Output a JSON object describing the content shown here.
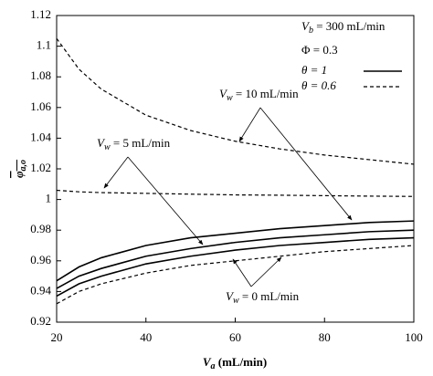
{
  "chart_data": {
    "type": "line",
    "x_label": {
      "symbol": "V",
      "subscript": "a",
      "text": " (mL/min)"
    },
    "y_label": {
      "symbol": "φ",
      "subscript": "a,o"
    },
    "x": [
      20,
      25,
      30,
      40,
      50,
      60,
      70,
      80,
      90,
      100
    ],
    "series": [
      {
        "style": "solid",
        "color": "#000000",
        "values": [
          0.947,
          0.956,
          0.962,
          0.97,
          0.975,
          0.978,
          0.981,
          0.983,
          0.985,
          0.986
        ]
      },
      {
        "style": "solid",
        "color": "#000000",
        "values": [
          0.942,
          0.95,
          0.955,
          0.963,
          0.968,
          0.972,
          0.975,
          0.977,
          0.979,
          0.98
        ]
      },
      {
        "style": "solid",
        "color": "#000000",
        "values": [
          0.937,
          0.945,
          0.95,
          0.958,
          0.963,
          0.967,
          0.97,
          0.972,
          0.974,
          0.975
        ]
      },
      {
        "style": "dashed",
        "color": "#000000",
        "values": [
          1.105,
          1.085,
          1.072,
          1.055,
          1.045,
          1.038,
          1.033,
          1.029,
          1.026,
          1.023
        ]
      },
      {
        "style": "dashed",
        "color": "#000000",
        "values": [
          1.006,
          1.005,
          1.0045,
          1.004,
          1.0035,
          1.003,
          1.0028,
          1.0025,
          1.0022,
          1.002
        ]
      },
      {
        "style": "dashed",
        "color": "#000000",
        "values": [
          0.932,
          0.94,
          0.945,
          0.952,
          0.957,
          0.96,
          0.963,
          0.966,
          0.968,
          0.97
        ]
      }
    ],
    "legend": [
      {
        "label": "θ = 1",
        "style": "solid"
      },
      {
        "label": "θ = 0.6",
        "style": "dashed"
      }
    ],
    "annotations": [
      {
        "symbol": "V",
        "subscript": "b",
        "text": " = 300 mL/min"
      },
      {
        "text": "Φ = 0.3"
      },
      {
        "symbol": "V",
        "subscript": "w",
        "text": " = 10 mL/min"
      },
      {
        "symbol": "V",
        "subscript": "w",
        "text": " = 5 mL/min"
      },
      {
        "symbol": "V",
        "subscript": "w",
        "text": " = 0 mL/min"
      }
    ],
    "xlim": [
      20,
      100
    ],
    "xticks": [
      20,
      40,
      60,
      80,
      100
    ],
    "ylim": [
      0.92,
      1.12
    ],
    "yticks": [
      0.92,
      0.94,
      0.96,
      0.98,
      1,
      1.02,
      1.04,
      1.06,
      1.08,
      1.1,
      1.12
    ]
  }
}
